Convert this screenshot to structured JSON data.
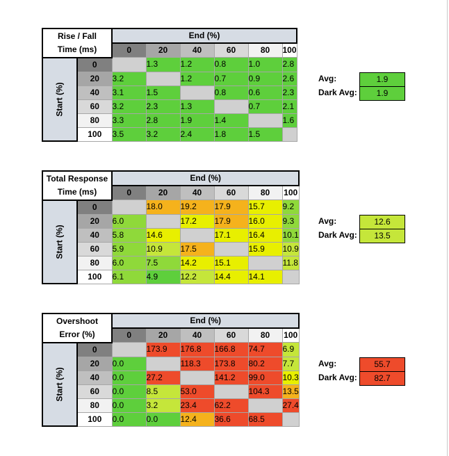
{
  "end_label": "End (%)",
  "start_label": "Start (%)",
  "levels": [
    "0",
    "20",
    "40",
    "60",
    "80",
    "100"
  ],
  "avg_label": "Avg:",
  "dark_avg_label": "Dark Avg:",
  "colors": {
    "green": "#5ecf3c",
    "lightgreen": "#8fd93a",
    "yellowgreen": "#c5e63a",
    "yellow": "#e8ef00",
    "orange": "#f5b21c",
    "redorange": "#f0763a",
    "red": "#ee4b2b",
    "diag": "#d0d0d0",
    "blank": "#ffffff"
  },
  "tables": [
    {
      "title_line1": "Rise / Fall",
      "title_line2": "Time (ms)",
      "avg": "1.9",
      "dark_avg": "1.9",
      "avg_color": "green",
      "dark_avg_color": "green",
      "rows": [
        [
          "",
          "1.3",
          "1.2",
          "0.8",
          "1.0",
          "2.8"
        ],
        [
          "3.2",
          "",
          "1.2",
          "0.7",
          "0.9",
          "2.6"
        ],
        [
          "3.1",
          "1.5",
          "",
          "0.8",
          "0.6",
          "2.3"
        ],
        [
          "3.2",
          "2.3",
          "1.3",
          "",
          "0.7",
          "2.1"
        ],
        [
          "3.3",
          "2.8",
          "1.9",
          "1.4",
          "",
          "1.6"
        ],
        [
          "3.5",
          "3.2",
          "2.4",
          "1.8",
          "1.5",
          ""
        ]
      ],
      "colors": [
        [
          "diag",
          "green",
          "green",
          "green",
          "green",
          "green"
        ],
        [
          "green",
          "diag",
          "green",
          "green",
          "green",
          "green"
        ],
        [
          "green",
          "green",
          "diag",
          "green",
          "green",
          "green"
        ],
        [
          "green",
          "green",
          "green",
          "diag",
          "green",
          "green"
        ],
        [
          "green",
          "green",
          "green",
          "green",
          "diag",
          "green"
        ],
        [
          "green",
          "green",
          "green",
          "green",
          "green",
          "diag"
        ]
      ]
    },
    {
      "title_line1": "Total Response",
      "title_line2": "Time (ms)",
      "avg": "12.6",
      "dark_avg": "13.5",
      "avg_color": "yellowgreen",
      "dark_avg_color": "yellowgreen",
      "rows": [
        [
          "",
          "18.0",
          "19.2",
          "17.9",
          "15.7",
          "9.2"
        ],
        [
          "6.0",
          "",
          "17.2",
          "17.9",
          "16.0",
          "9.3"
        ],
        [
          "5.8",
          "14.6",
          "",
          "17.1",
          "16.4",
          "10.1"
        ],
        [
          "5.9",
          "10.9",
          "17.5",
          "",
          "15.9",
          "10.9"
        ],
        [
          "6.0",
          "7.5",
          "14.2",
          "15.1",
          "",
          "11.8"
        ],
        [
          "6.1",
          "4.9",
          "12.2",
          "14.4",
          "14.1",
          ""
        ]
      ],
      "colors": [
        [
          "diag",
          "orange",
          "orange",
          "orange",
          "yellow",
          "lightgreen"
        ],
        [
          "lightgreen",
          "diag",
          "yellow",
          "orange",
          "yellow",
          "lightgreen"
        ],
        [
          "lightgreen",
          "yellow",
          "diag",
          "yellow",
          "yellow",
          "lightgreen"
        ],
        [
          "lightgreen",
          "yellowgreen",
          "orange",
          "diag",
          "yellow",
          "yellowgreen"
        ],
        [
          "lightgreen",
          "lightgreen",
          "yellow",
          "yellow",
          "diag",
          "yellowgreen"
        ],
        [
          "lightgreen",
          "green",
          "yellowgreen",
          "yellow",
          "yellow",
          "diag"
        ]
      ]
    },
    {
      "title_line1": "Overshoot",
      "title_line2": "Error (%)",
      "avg": "55.7",
      "dark_avg": "82.7",
      "avg_color": "red",
      "dark_avg_color": "red",
      "rows": [
        [
          "",
          "173.9",
          "176.8",
          "166.8",
          "74.7",
          "6.9"
        ],
        [
          "0.0",
          "",
          "118.3",
          "173.8",
          "80.2",
          "7.7"
        ],
        [
          "0.0",
          "27.2",
          "",
          "141.2",
          "99.0",
          "10.3"
        ],
        [
          "0.0",
          "8.5",
          "53.0",
          "",
          "104.3",
          "13.5"
        ],
        [
          "0.0",
          "3.2",
          "23.4",
          "62.2",
          "",
          "27.4"
        ],
        [
          "0.0",
          "0.0",
          "12.4",
          "36.6",
          "68.5",
          ""
        ]
      ],
      "colors": [
        [
          "diag",
          "red",
          "red",
          "red",
          "red",
          "yellowgreen"
        ],
        [
          "green",
          "diag",
          "red",
          "red",
          "red",
          "yellowgreen"
        ],
        [
          "green",
          "red",
          "diag",
          "red",
          "red",
          "yellow"
        ],
        [
          "green",
          "yellowgreen",
          "red",
          "diag",
          "red",
          "orange"
        ],
        [
          "green",
          "yellowgreen",
          "red",
          "red",
          "diag",
          "red"
        ],
        [
          "green",
          "green",
          "orange",
          "red",
          "red",
          "diag"
        ]
      ]
    }
  ]
}
